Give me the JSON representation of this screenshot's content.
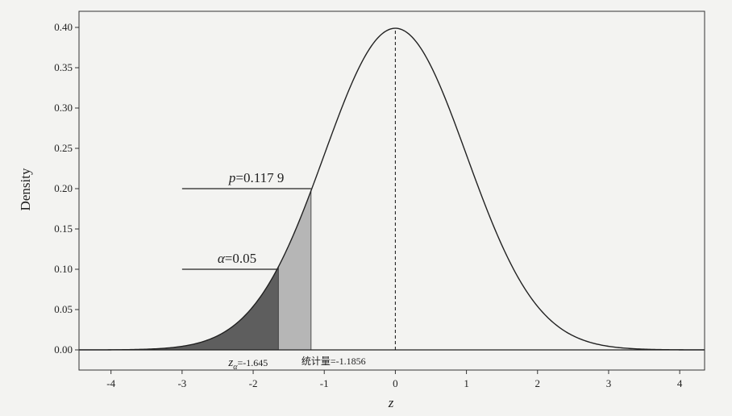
{
  "chart_data": {
    "type": "area",
    "distribution": "standard normal density",
    "xlabel": "z",
    "ylabel": "Density",
    "xlim": [
      -4.45,
      4.35
    ],
    "ylim": [
      -0.025,
      0.42
    ],
    "xticks": [
      -4,
      -3,
      -2,
      -1,
      0,
      1,
      2,
      3,
      4
    ],
    "yticks": [
      0.0,
      0.05,
      0.1,
      0.15,
      0.2,
      0.25,
      0.3,
      0.35,
      0.4
    ],
    "ytick_labels": [
      "0.00",
      "0.05",
      "0.10",
      "0.15",
      "0.20",
      "0.25",
      "0.30",
      "0.35",
      "0.40"
    ],
    "xtick_labels": [
      "-4",
      "-3",
      "-2",
      "-1",
      "0",
      "1",
      "2",
      "3",
      "4"
    ],
    "mean_line_x": 0,
    "shaded_regions": [
      {
        "name": "alpha",
        "from": -4.45,
        "to": -1.645,
        "color": "#5e5e5e"
      },
      {
        "name": "p",
        "from": -1.645,
        "to": -1.1856,
        "color": "#b6b6b6"
      }
    ],
    "annotations": [
      {
        "id": "p",
        "text_italic": "p",
        "text": "=0.117 9",
        "line_from": -3.0,
        "line_to": -1.1856,
        "y": 0.2
      },
      {
        "id": "alpha",
        "text_italic": "α",
        "text": "=0.05",
        "line_from": -3.0,
        "line_to": -1.645,
        "y": 0.1
      }
    ],
    "markers": [
      {
        "id": "z-alpha",
        "text_main": "z",
        "text_sub": "α",
        "text": "=-1.645",
        "x": -1.645
      },
      {
        "id": "statistic",
        "text": "统计量=-1.1856",
        "x": -1.1856
      }
    ]
  }
}
